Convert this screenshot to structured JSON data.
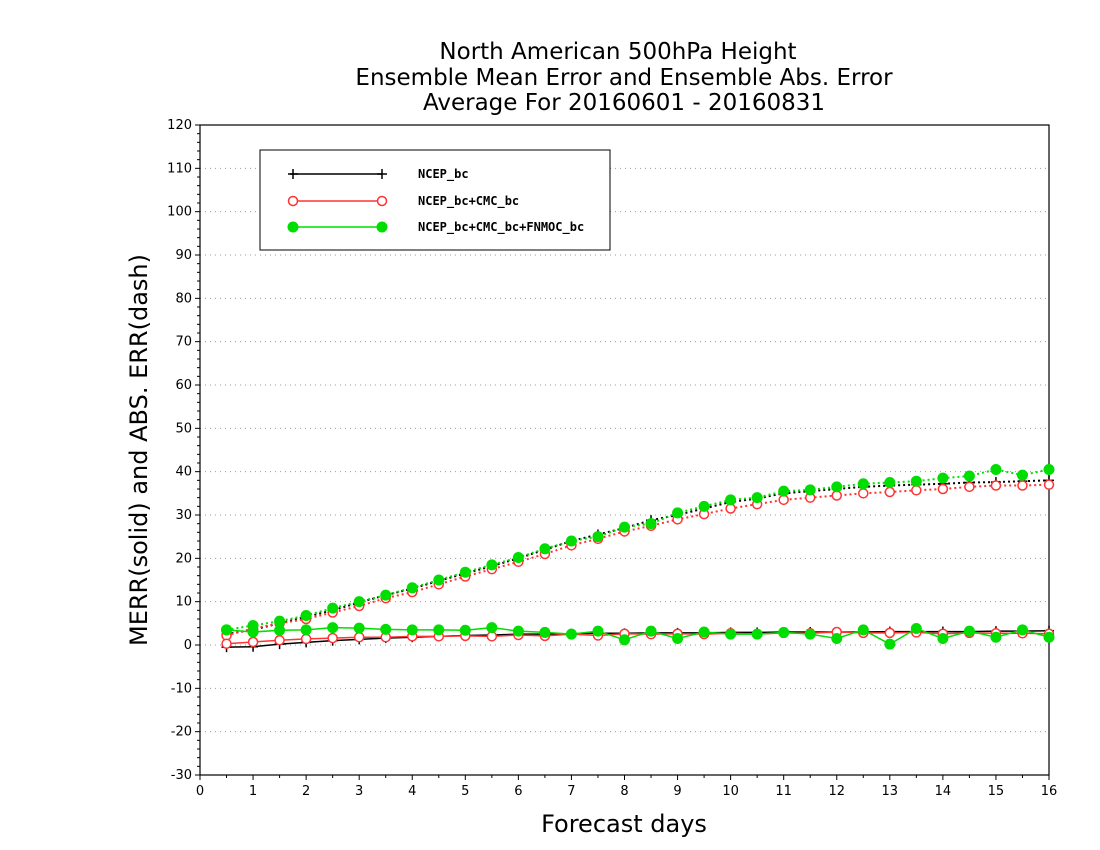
{
  "chart_data": {
    "type": "line",
    "title_lines": [
      "North American 500hPa Height",
      "Ensemble Mean Error and Ensemble Abs. Error",
      "Average For 20160601 - 20160831"
    ],
    "xlabel": "Forecast days",
    "ylabel": "MERR(solid) and ABS. ERR(dash)",
    "xlim": [
      0,
      16
    ],
    "ylim": [
      -30,
      120
    ],
    "xticks": [
      0,
      1,
      2,
      3,
      4,
      5,
      6,
      7,
      8,
      9,
      10,
      11,
      12,
      13,
      14,
      15,
      16
    ],
    "yticks": [
      -30,
      -20,
      -10,
      0,
      10,
      20,
      30,
      40,
      50,
      60,
      70,
      80,
      90,
      100,
      110,
      120
    ],
    "grid": true,
    "legend_position": "top-left",
    "x": [
      0.5,
      1,
      1.5,
      2,
      2.5,
      3,
      3.5,
      4,
      4.5,
      5,
      5.5,
      6,
      6.5,
      7,
      7.5,
      8,
      8.5,
      9,
      9.5,
      10,
      10.5,
      11,
      11.5,
      12,
      12.5,
      13,
      13.5,
      14,
      14.5,
      15,
      15.5,
      16
    ],
    "series": [
      {
        "name": "NCEP_bc",
        "color": "#000000",
        "marker": "plus",
        "merr": [
          -0.5,
          -0.4,
          0.2,
          0.6,
          1.0,
          1.3,
          1.6,
          1.8,
          2.0,
          2.2,
          2.3,
          2.5,
          2.5,
          2.6,
          2.7,
          2.7,
          2.8,
          2.8,
          2.8,
          2.9,
          2.9,
          3.0,
          3.0,
          3.0,
          3.0,
          3.1,
          3.1,
          3.1,
          3.1,
          3.2,
          3.2,
          3.3
        ],
        "abs_err": [
          2.5,
          3.5,
          5.0,
          6.5,
          8.0,
          9.8,
          11.5,
          13.0,
          14.8,
          16.5,
          18.2,
          20.0,
          22.0,
          24.0,
          25.5,
          27.0,
          28.8,
          30.0,
          31.5,
          33.0,
          33.8,
          35.0,
          35.5,
          36.0,
          36.5,
          36.8,
          37.0,
          37.2,
          37.5,
          37.6,
          37.8,
          38.0
        ]
      },
      {
        "name": "NCEP_bc+CMC_bc",
        "color": "#ff3333",
        "marker": "open-circle",
        "merr": [
          0.3,
          0.7,
          1.1,
          1.4,
          1.6,
          1.8,
          1.8,
          2.0,
          2.0,
          2.1,
          2.0,
          2.3,
          2.1,
          2.5,
          2.2,
          2.6,
          2.5,
          2.6,
          2.5,
          2.7,
          2.5,
          2.8,
          2.7,
          3.0,
          2.8,
          2.8,
          2.9,
          2.6,
          2.8,
          2.7,
          2.7,
          2.6
        ],
        "abs_err": [
          2.2,
          3.8,
          5.0,
          6.0,
          7.5,
          9.0,
          10.8,
          12.2,
          14.0,
          15.8,
          17.5,
          19.2,
          21.0,
          23.0,
          24.5,
          26.2,
          27.5,
          29.0,
          30.2,
          31.5,
          32.5,
          33.5,
          34.0,
          34.5,
          35.0,
          35.3,
          35.7,
          36.0,
          36.5,
          36.8,
          36.8,
          37.0
        ]
      },
      {
        "name": "NCEP_bc+CMC_bc+FNMOC_bc",
        "color": "#00dd00",
        "marker": "filled-circle",
        "merr": [
          3.5,
          3.0,
          3.4,
          3.5,
          4.0,
          3.9,
          3.6,
          3.5,
          3.5,
          3.4,
          4.0,
          3.2,
          2.9,
          2.5,
          3.2,
          1.2,
          3.2,
          1.5,
          3.0,
          2.5,
          2.5,
          2.9,
          2.5,
          1.5,
          3.5,
          0.2,
          3.8,
          1.5,
          3.2,
          1.8,
          3.5,
          1.8
        ],
        "abs_err": [
          3.5,
          4.5,
          5.5,
          6.8,
          8.5,
          10.0,
          11.5,
          13.2,
          15.0,
          16.8,
          18.5,
          20.2,
          22.2,
          24.0,
          25.0,
          27.2,
          28.0,
          30.5,
          32.0,
          33.5,
          34.0,
          35.5,
          35.8,
          36.5,
          37.2,
          37.5,
          37.8,
          38.5,
          39.0,
          40.5,
          39.2,
          40.5
        ]
      }
    ]
  }
}
